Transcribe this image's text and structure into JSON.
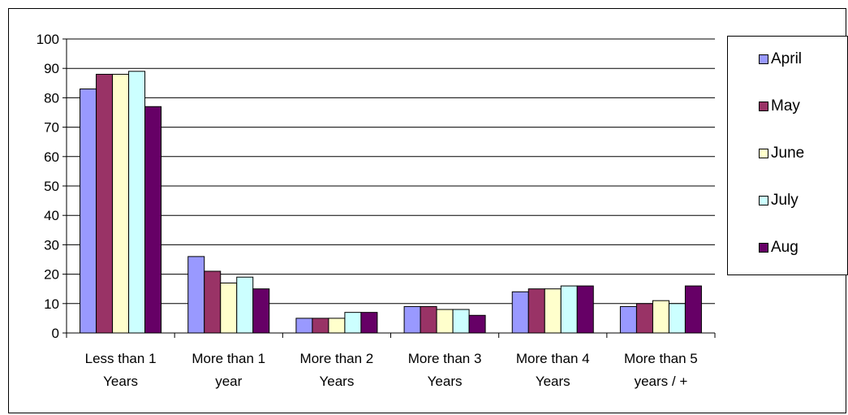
{
  "chart_data": {
    "type": "bar",
    "categories": [
      [
        "Less than 1",
        "Years"
      ],
      [
        "More than 1",
        "year"
      ],
      [
        "More than 2",
        "Years"
      ],
      [
        "More than 3",
        "Years"
      ],
      [
        "More than 4",
        "Years"
      ],
      [
        "More than 5",
        "years / +"
      ]
    ],
    "series": [
      {
        "name": "April",
        "color": "#9999ff",
        "values": [
          83,
          26,
          5,
          9,
          14,
          9
        ]
      },
      {
        "name": "May",
        "color": "#993366",
        "values": [
          88,
          21,
          5,
          9,
          15,
          10
        ]
      },
      {
        "name": "June",
        "color": "#ffffcc",
        "values": [
          88,
          17,
          5,
          8,
          15,
          11
        ]
      },
      {
        "name": "July",
        "color": "#ccffff",
        "values": [
          89,
          19,
          7,
          8,
          16,
          10
        ]
      },
      {
        "name": "Aug",
        "color": "#660066",
        "values": [
          77,
          15,
          7,
          6,
          16,
          16
        ]
      }
    ],
    "ylim": [
      0,
      100
    ],
    "yticks": [
      0,
      10,
      20,
      30,
      40,
      50,
      60,
      70,
      80,
      90,
      100
    ],
    "grid": true,
    "legend_position": "right",
    "title": "",
    "xlabel": "",
    "ylabel": ""
  }
}
